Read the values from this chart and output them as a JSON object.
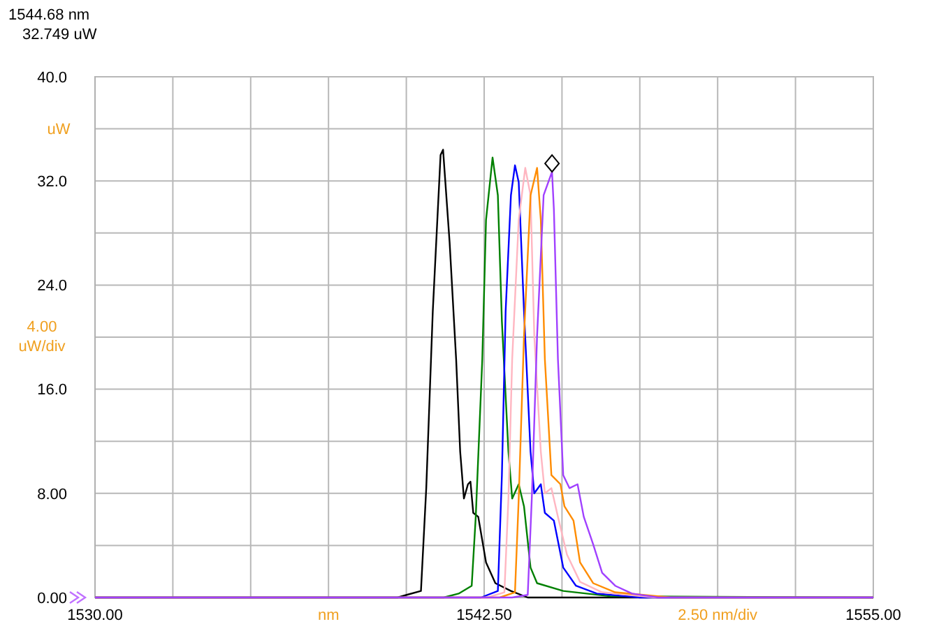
{
  "chart_data": {
    "type": "line",
    "xlabel": "nm",
    "ylabel": "uW",
    "annotations": [
      "1544.68 nm\n32.749 uW",
      "4.00\nuW/div",
      "2.50 nm/div"
    ],
    "xlim": [
      1530,
      1555
    ],
    "ylim": [
      0,
      40
    ],
    "xticks": [
      {
        "value": 1530,
        "label": "1530.00"
      },
      {
        "value": 1532.5,
        "label": null
      },
      {
        "value": 1535,
        "label": null
      },
      {
        "value": 1537.5,
        "label": null
      },
      {
        "value": 1540,
        "label": null
      },
      {
        "value": 1542.5,
        "label": "1542.50"
      },
      {
        "value": 1545,
        "label": null
      },
      {
        "value": 1547.5,
        "label": null
      },
      {
        "value": 1550,
        "label": null
      },
      {
        "value": 1552.5,
        "label": null
      },
      {
        "value": 1555,
        "label": "1555.00"
      }
    ],
    "yticks": [
      {
        "value": 0,
        "label": "0.00"
      },
      {
        "value": 4,
        "label": null
      },
      {
        "value": 8,
        "label": "8.00"
      },
      {
        "value": 12,
        "label": null
      },
      {
        "value": 16,
        "label": "16.0"
      },
      {
        "value": 20,
        "label": null
      },
      {
        "value": 24,
        "label": "24.0"
      },
      {
        "value": 28,
        "label": null
      },
      {
        "value": 32,
        "label": "32.0"
      },
      {
        "value": 36,
        "label": null
      },
      {
        "value": 40,
        "label": "40.0"
      }
    ],
    "grid": true,
    "line_style": "solid",
    "marker": "none",
    "series": [
      {
        "color": "#000000",
        "x": [
          1530,
          1539.72,
          1540.01,
          1540.47,
          1540.64,
          1540.85,
          1541.1,
          1541.18,
          1541.39,
          1541.6,
          1541.73,
          1541.85,
          1541.98,
          1542.06,
          1542.15,
          1542.31,
          1542.56,
          1542.86,
          1543.36,
          1543.9,
          1555
        ],
        "values": [
          0,
          0,
          0.2,
          0.5,
          8.4,
          22,
          34,
          34.4,
          27.3,
          18.3,
          11.2,
          7.6,
          8.7,
          8.9,
          6.5,
          6.2,
          2.7,
          1.1,
          0.5,
          0,
          0
        ]
      },
      {
        "color": "#008000",
        "x": [
          1530,
          1541.2,
          1541.68,
          1542.1,
          1542.23,
          1542.44,
          1542.56,
          1542.77,
          1542.94,
          1543.07,
          1543.28,
          1543.4,
          1543.61,
          1543.78,
          1543.99,
          1544.2,
          1545.04,
          1546.54,
          1555
        ],
        "values": [
          0,
          0,
          0.3,
          0.9,
          6.2,
          18.3,
          29,
          33.8,
          30.9,
          21.2,
          11.2,
          7.6,
          8.7,
          7,
          2.3,
          1.1,
          0.5,
          0.1,
          0
        ]
      },
      {
        "color": "#0000ff",
        "x": [
          1530,
          1542.4,
          1542.94,
          1543.07,
          1543.19,
          1543.36,
          1543.49,
          1543.61,
          1543.78,
          1543.99,
          1544.11,
          1544.32,
          1544.45,
          1544.74,
          1545.04,
          1545.45,
          1546.12,
          1547.5,
          1555
        ],
        "values": [
          0,
          0,
          0.5,
          9.4,
          22,
          30.9,
          33.2,
          31.9,
          22,
          11.2,
          8,
          8.7,
          6.5,
          5.9,
          2.3,
          0.9,
          0.3,
          0,
          0
        ]
      },
      {
        "color": "#ffb6c1",
        "x": [
          1530,
          1542.6,
          1543.15,
          1543.28,
          1543.4,
          1543.61,
          1543.82,
          1543.99,
          1544.11,
          1544.32,
          1544.45,
          1544.66,
          1544.87,
          1545.16,
          1545.58,
          1546.29,
          1548,
          1555
        ],
        "values": [
          0,
          0,
          0.4,
          7.6,
          18.3,
          29,
          33,
          30.9,
          20.1,
          11.2,
          8,
          8.4,
          6.2,
          3.3,
          1.2,
          0.4,
          0,
          0
        ]
      },
      {
        "color": "#ff8c00",
        "x": [
          1530,
          1543,
          1543.49,
          1543.61,
          1543.78,
          1543.99,
          1544.2,
          1544.32,
          1544.45,
          1544.66,
          1544.95,
          1545.08,
          1545.37,
          1545.58,
          1546,
          1546.71,
          1548.5,
          1555
        ],
        "values": [
          0,
          0,
          0.4,
          7.6,
          20.1,
          30.9,
          33,
          29,
          18.3,
          9.4,
          8.7,
          7,
          5.9,
          2.7,
          1.1,
          0.4,
          0,
          0
        ]
      },
      {
        "color": "#a040ff",
        "x": [
          1530,
          1543.4,
          1543.9,
          1544.03,
          1544.2,
          1544.41,
          1544.68,
          1544.74,
          1544.87,
          1545.04,
          1545.24,
          1545.5,
          1545.7,
          1546,
          1546.29,
          1546.71,
          1547.25,
          1548.09,
          1555
        ],
        "values": [
          0,
          0,
          0.2,
          7.6,
          20.1,
          30.9,
          32.7,
          29.8,
          18.3,
          9.4,
          8.4,
          8.7,
          6.2,
          4.1,
          1.9,
          0.9,
          0.3,
          0,
          0
        ]
      }
    ]
  }
}
